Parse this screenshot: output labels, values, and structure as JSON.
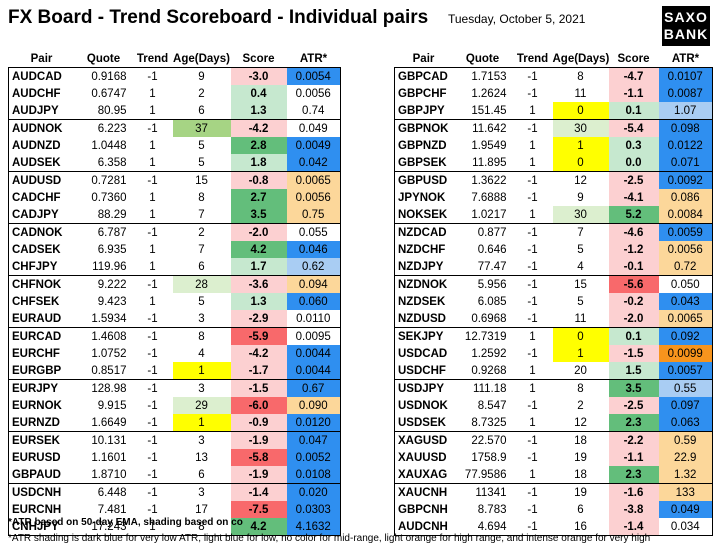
{
  "header": {
    "title": "FX Board - Trend Scoreboard - Individual pairs",
    "date": "Tuesday, October 5, 2021",
    "logo_top": "SAXO",
    "logo_bottom": "BANK"
  },
  "colors": {
    "atr_dark_blue": "#2f8ff0",
    "atr_light_blue": "#a9cdf3",
    "atr_light_orange": "#fcd79a",
    "atr_intense_orange": "#f7941d",
    "score_positive_strong": "#63be7b",
    "score_positive_light": "#c6e8cf",
    "score_negative_strong": "#f8696b",
    "score_negative_light": "#fcd0d1",
    "age_yellow": "#ffff00",
    "age_green_strong": "#a6d484",
    "age_green_light": "#dcefcf"
  },
  "chart_data": {
    "type": "table",
    "columns": [
      "Pair",
      "Quote",
      "Trend",
      "Age(Days)",
      "Score",
      "ATR*"
    ],
    "left_table": [
      {
        "pair": "AUDCAD",
        "quote": "0.9168",
        "trend": "-1",
        "age": "9",
        "score": "-3.0",
        "atr": "0.0054",
        "sc": "neg_light",
        "ac": "dark_blue",
        "ag": ""
      },
      {
        "pair": "AUDCHF",
        "quote": "0.6747",
        "trend": "1",
        "age": "2",
        "score": "0.4",
        "atr": "0.0056",
        "sc": "pos_light",
        "ac": "",
        "ag": ""
      },
      {
        "pair": "AUDJPY",
        "quote": "80.95",
        "trend": "1",
        "age": "6",
        "score": "1.3",
        "atr": "0.74",
        "sc": "pos_light",
        "ac": "",
        "ag": ""
      },
      {
        "pair": "AUDNOK",
        "quote": "6.223",
        "trend": "-1",
        "age": "37",
        "score": "-4.2",
        "atr": "0.049",
        "sc": "neg_light",
        "ac": "",
        "ag": "green_strong"
      },
      {
        "pair": "AUDNZD",
        "quote": "1.0448",
        "trend": "1",
        "age": "5",
        "score": "2.8",
        "atr": "0.0049",
        "sc": "pos_strong",
        "ac": "dark_blue",
        "ag": ""
      },
      {
        "pair": "AUDSEK",
        "quote": "6.358",
        "trend": "1",
        "age": "5",
        "score": "1.8",
        "atr": "0.042",
        "sc": "pos_light",
        "ac": "dark_blue",
        "ag": ""
      },
      {
        "pair": "AUDUSD",
        "quote": "0.7281",
        "trend": "-1",
        "age": "15",
        "score": "-0.8",
        "atr": "0.0065",
        "sc": "neg_light",
        "ac": "light_orange",
        "ag": ""
      },
      {
        "pair": "CADCHF",
        "quote": "0.7360",
        "trend": "1",
        "age": "8",
        "score": "2.7",
        "atr": "0.0056",
        "sc": "pos_strong",
        "ac": "light_orange",
        "ag": ""
      },
      {
        "pair": "CADJPY",
        "quote": "88.29",
        "trend": "1",
        "age": "7",
        "score": "3.5",
        "atr": "0.75",
        "sc": "pos_strong",
        "ac": "light_orange",
        "ag": ""
      },
      {
        "pair": "CADNOK",
        "quote": "6.787",
        "trend": "-1",
        "age": "2",
        "score": "-2.0",
        "atr": "0.055",
        "sc": "neg_light",
        "ac": "",
        "ag": ""
      },
      {
        "pair": "CADSEK",
        "quote": "6.935",
        "trend": "1",
        "age": "7",
        "score": "4.2",
        "atr": "0.046",
        "sc": "pos_strong",
        "ac": "dark_blue",
        "ag": ""
      },
      {
        "pair": "CHFJPY",
        "quote": "119.96",
        "trend": "1",
        "age": "6",
        "score": "1.7",
        "atr": "0.62",
        "sc": "pos_light",
        "ac": "light_blue",
        "ag": ""
      },
      {
        "pair": "CHFNOK",
        "quote": "9.222",
        "trend": "-1",
        "age": "28",
        "score": "-3.6",
        "atr": "0.094",
        "sc": "neg_light",
        "ac": "light_orange",
        "ag": "green_light"
      },
      {
        "pair": "CHFSEK",
        "quote": "9.423",
        "trend": "1",
        "age": "5",
        "score": "1.3",
        "atr": "0.060",
        "sc": "pos_light",
        "ac": "dark_blue",
        "ag": ""
      },
      {
        "pair": "EURAUD",
        "quote": "1.5934",
        "trend": "-1",
        "age": "3",
        "score": "-2.9",
        "atr": "0.0110",
        "sc": "neg_light",
        "ac": "",
        "ag": ""
      },
      {
        "pair": "EURCAD",
        "quote": "1.4608",
        "trend": "-1",
        "age": "8",
        "score": "-5.9",
        "atr": "0.0095",
        "sc": "neg_strong",
        "ac": "",
        "ag": ""
      },
      {
        "pair": "EURCHF",
        "quote": "1.0752",
        "trend": "-1",
        "age": "4",
        "score": "-4.2",
        "atr": "0.0044",
        "sc": "neg_light",
        "ac": "dark_blue",
        "ag": ""
      },
      {
        "pair": "EURGBP",
        "quote": "0.8517",
        "trend": "-1",
        "age": "1",
        "score": "-1.7",
        "atr": "0.0044",
        "sc": "neg_light",
        "ac": "dark_blue",
        "ag": "yellow"
      },
      {
        "pair": "EURJPY",
        "quote": "128.98",
        "trend": "-1",
        "age": "3",
        "score": "-1.5",
        "atr": "0.67",
        "sc": "neg_light",
        "ac": "dark_blue",
        "ag": ""
      },
      {
        "pair": "EURNOK",
        "quote": "9.915",
        "trend": "-1",
        "age": "29",
        "score": "-6.0",
        "atr": "0.090",
        "sc": "neg_strong",
        "ac": "light_orange",
        "ag": "green_light"
      },
      {
        "pair": "EURNZD",
        "quote": "1.6649",
        "trend": "-1",
        "age": "1",
        "score": "-0.9",
        "atr": "0.0120",
        "sc": "neg_light",
        "ac": "dark_blue",
        "ag": "yellow"
      },
      {
        "pair": "EURSEK",
        "quote": "10.131",
        "trend": "-1",
        "age": "3",
        "score": "-1.9",
        "atr": "0.047",
        "sc": "neg_light",
        "ac": "dark_blue",
        "ag": ""
      },
      {
        "pair": "EURUSD",
        "quote": "1.1601",
        "trend": "-1",
        "age": "13",
        "score": "-5.8",
        "atr": "0.0052",
        "sc": "neg_strong",
        "ac": "dark_blue",
        "ag": ""
      },
      {
        "pair": "GBPAUD",
        "quote": "1.8710",
        "trend": "-1",
        "age": "6",
        "score": "-1.9",
        "atr": "0.0108",
        "sc": "neg_light",
        "ac": "dark_blue",
        "ag": ""
      },
      {
        "pair": "USDCNH",
        "quote": "6.448",
        "trend": "-1",
        "age": "3",
        "score": "-1.4",
        "atr": "0.020",
        "sc": "neg_light",
        "ac": "dark_blue",
        "ag": ""
      },
      {
        "pair": "EURCNH",
        "quote": "7.481",
        "trend": "-1",
        "age": "17",
        "score": "-7.5",
        "atr": "0.0303",
        "sc": "neg_strong",
        "ac": "dark_blue",
        "ag": ""
      },
      {
        "pair": "CNHJPY",
        "quote": "17.243",
        "trend": "1",
        "age": "8",
        "score": "4.2",
        "atr": "4.1632",
        "sc": "pos_strong",
        "ac": "dark_blue",
        "ag": ""
      }
    ],
    "right_table": [
      {
        "pair": "GBPCAD",
        "quote": "1.7153",
        "trend": "-1",
        "age": "8",
        "score": "-4.7",
        "atr": "0.0107",
        "sc": "neg_light",
        "ac": "dark_blue",
        "ag": ""
      },
      {
        "pair": "GBPCHF",
        "quote": "1.2624",
        "trend": "-1",
        "age": "11",
        "score": "-1.1",
        "atr": "0.0087",
        "sc": "neg_light",
        "ac": "dark_blue",
        "ag": ""
      },
      {
        "pair": "GBPJPY",
        "quote": "151.45",
        "trend": "1",
        "age": "0",
        "score": "0.1",
        "atr": "1.07",
        "sc": "pos_light",
        "ac": "light_blue",
        "ag": "yellow"
      },
      {
        "pair": "GBPNOK",
        "quote": "11.642",
        "trend": "-1",
        "age": "30",
        "score": "-5.4",
        "atr": "0.098",
        "sc": "neg_light",
        "ac": "dark_blue",
        "ag": "green_light"
      },
      {
        "pair": "GBPNZD",
        "quote": "1.9549",
        "trend": "1",
        "age": "1",
        "score": "0.3",
        "atr": "0.0122",
        "sc": "pos_light",
        "ac": "dark_blue",
        "ag": "yellow"
      },
      {
        "pair": "GBPSEK",
        "quote": "11.895",
        "trend": "1",
        "age": "0",
        "score": "0.0",
        "atr": "0.071",
        "sc": "pos_light",
        "ac": "dark_blue",
        "ag": "yellow"
      },
      {
        "pair": "GBPUSD",
        "quote": "1.3622",
        "trend": "-1",
        "age": "12",
        "score": "-2.5",
        "atr": "0.0092",
        "sc": "neg_light",
        "ac": "dark_blue",
        "ag": ""
      },
      {
        "pair": "JPYNOK",
        "quote": "7.6888",
        "trend": "-1",
        "age": "9",
        "score": "-4.1",
        "atr": "0.086",
        "sc": "neg_light",
        "ac": "light_orange",
        "ag": ""
      },
      {
        "pair": "NOKSEK",
        "quote": "1.0217",
        "trend": "1",
        "age": "30",
        "score": "5.2",
        "atr": "0.0084",
        "sc": "pos_strong",
        "ac": "light_orange",
        "ag": "green_light"
      },
      {
        "pair": "NZDCAD",
        "quote": "0.877",
        "trend": "-1",
        "age": "7",
        "score": "-4.6",
        "atr": "0.0059",
        "sc": "neg_light",
        "ac": "dark_blue",
        "ag": ""
      },
      {
        "pair": "NZDCHF",
        "quote": "0.646",
        "trend": "-1",
        "age": "5",
        "score": "-1.2",
        "atr": "0.0056",
        "sc": "neg_light",
        "ac": "light_orange",
        "ag": ""
      },
      {
        "pair": "NZDJPY",
        "quote": "77.47",
        "trend": "-1",
        "age": "4",
        "score": "-0.1",
        "atr": "0.72",
        "sc": "neg_light",
        "ac": "light_orange",
        "ag": ""
      },
      {
        "pair": "NZDNOK",
        "quote": "5.956",
        "trend": "-1",
        "age": "15",
        "score": "-5.6",
        "atr": "0.050",
        "sc": "neg_strong",
        "ac": "",
        "ag": ""
      },
      {
        "pair": "NZDSEK",
        "quote": "6.085",
        "trend": "-1",
        "age": "5",
        "score": "-0.2",
        "atr": "0.043",
        "sc": "neg_light",
        "ac": "dark_blue",
        "ag": ""
      },
      {
        "pair": "NZDUSD",
        "quote": "0.6968",
        "trend": "-1",
        "age": "11",
        "score": "-2.0",
        "atr": "0.0065",
        "sc": "neg_light",
        "ac": "light_orange",
        "ag": ""
      },
      {
        "pair": "SEKJPY",
        "quote": "12.7319",
        "trend": "1",
        "age": "0",
        "score": "0.1",
        "atr": "0.092",
        "sc": "pos_light",
        "ac": "dark_blue",
        "ag": "yellow"
      },
      {
        "pair": "USDCAD",
        "quote": "1.2592",
        "trend": "-1",
        "age": "1",
        "score": "-1.5",
        "atr": "0.0099",
        "sc": "neg_light",
        "ac": "intense_orange",
        "ag": "yellow"
      },
      {
        "pair": "USDCHF",
        "quote": "0.9268",
        "trend": "1",
        "age": "20",
        "score": "1.5",
        "atr": "0.0057",
        "sc": "pos_light",
        "ac": "dark_blue",
        "ag": ""
      },
      {
        "pair": "USDJPY",
        "quote": "111.18",
        "trend": "1",
        "age": "8",
        "score": "3.5",
        "atr": "0.55",
        "sc": "pos_strong",
        "ac": "light_blue",
        "ag": ""
      },
      {
        "pair": "USDNOK",
        "quote": "8.547",
        "trend": "-1",
        "age": "2",
        "score": "-2.5",
        "atr": "0.097",
        "sc": "neg_light",
        "ac": "dark_blue",
        "ag": ""
      },
      {
        "pair": "USDSEK",
        "quote": "8.7325",
        "trend": "1",
        "age": "12",
        "score": "2.3",
        "atr": "0.063",
        "sc": "pos_strong",
        "ac": "dark_blue",
        "ag": ""
      },
      {
        "pair": "XAGUSD",
        "quote": "22.570",
        "trend": "-1",
        "age": "18",
        "score": "-2.2",
        "atr": "0.59",
        "sc": "neg_light",
        "ac": "light_orange",
        "ag": ""
      },
      {
        "pair": "XAUUSD",
        "quote": "1758.9",
        "trend": "-1",
        "age": "19",
        "score": "-1.1",
        "atr": "22.9",
        "sc": "neg_light",
        "ac": "light_orange",
        "ag": ""
      },
      {
        "pair": "XAUXAG",
        "quote": "77.9586",
        "trend": "1",
        "age": "18",
        "score": "2.3",
        "atr": "1.32",
        "sc": "pos_strong",
        "ac": "light_orange",
        "ag": ""
      },
      {
        "pair": "XAUCNH",
        "quote": "11341",
        "trend": "-1",
        "age": "19",
        "score": "-1.6",
        "atr": "133",
        "sc": "neg_light",
        "ac": "light_orange",
        "ag": ""
      },
      {
        "pair": "GBPCNH",
        "quote": "8.783",
        "trend": "-1",
        "age": "6",
        "score": "-3.8",
        "atr": "0.049",
        "sc": "neg_light",
        "ac": "dark_blue",
        "ag": ""
      },
      {
        "pair": "AUDCNH",
        "quote": "4.694",
        "trend": "-1",
        "age": "16",
        "score": "-1.4",
        "atr": "0.034",
        "sc": "neg_light",
        "ac": "",
        "ag": ""
      }
    ]
  },
  "footnotes": {
    "line1": "*ATR based on 50-day EMA, shading based on co",
    "line2": "*ATR shading is dark blue for very low ATR, light blue for low, no color for mid-range, light orange for high range, and intense orange for very high"
  }
}
